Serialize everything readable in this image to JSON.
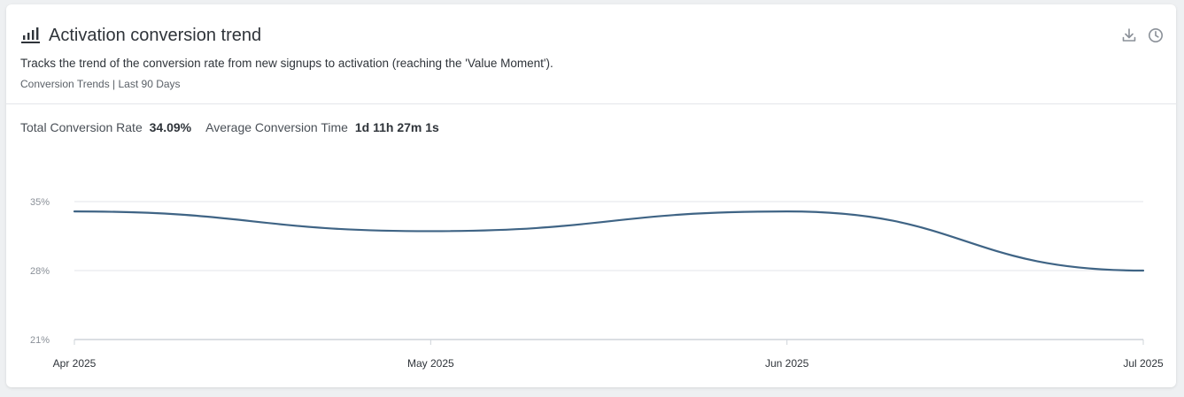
{
  "card": {
    "title": "Activation conversion trend",
    "description": "Tracks the trend of the conversion rate from new signups to activation (reaching the 'Value Moment').",
    "subtitle": "Conversion Trends | Last 90 Days",
    "icons": {
      "title": "bar-chart-icon",
      "download": "download-icon",
      "history": "clock-icon"
    }
  },
  "stats": {
    "total_label": "Total Conversion Rate",
    "total_value": "34.09%",
    "avg_label": "Average Conversion Time",
    "avg_value": "1d 11h 27m 1s"
  },
  "colors": {
    "line": "#3f6485",
    "grid": "#e3e6ea"
  },
  "chart_data": {
    "type": "line",
    "x": [
      "Apr 2025",
      "May 2025",
      "Jun 2025",
      "Jul 2025"
    ],
    "series": [
      {
        "values": [
          34.0,
          32.0,
          34.0,
          28.0
        ]
      }
    ],
    "yticks": [
      "35%",
      "28%",
      "21%"
    ],
    "ylim": [
      21,
      35
    ],
    "grid": true
  }
}
